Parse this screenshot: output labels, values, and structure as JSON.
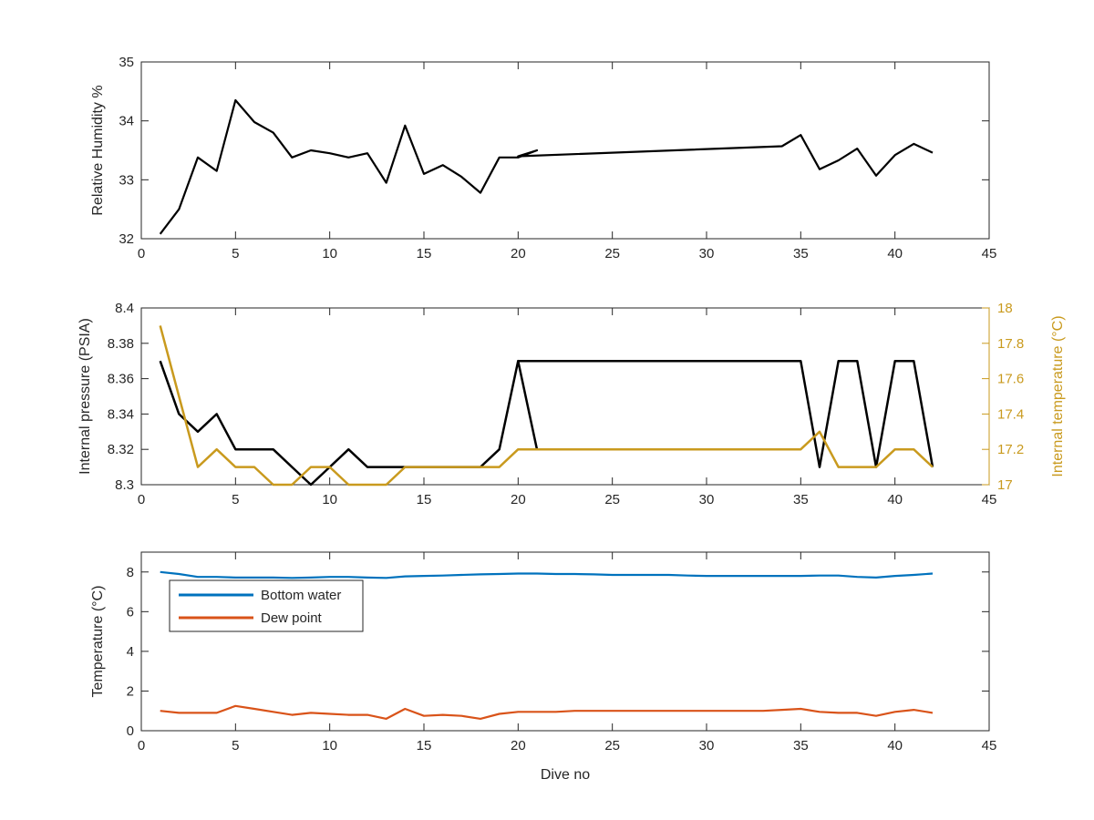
{
  "chart_data": [
    {
      "type": "line",
      "xlabel": "",
      "ylabel": "Relative Humidity %",
      "xlim": [
        0,
        45
      ],
      "ylim": [
        32,
        35
      ],
      "xticks": [
        0,
        5,
        10,
        15,
        20,
        25,
        30,
        35,
        40,
        45
      ],
      "yticks": [
        32,
        33,
        34,
        35
      ],
      "grid": false,
      "series": [
        {
          "color": "#000000",
          "x": [
            1,
            2,
            3,
            4,
            5,
            6,
            7,
            8,
            9,
            10,
            11,
            12,
            13,
            14,
            15,
            16,
            17,
            18,
            19,
            20,
            21,
            20,
            34,
            35,
            36,
            37,
            38,
            39,
            40,
            41,
            42
          ],
          "y": [
            32.08,
            32.5,
            33.38,
            33.15,
            34.35,
            33.98,
            33.8,
            33.38,
            33.5,
            33.45,
            33.38,
            33.45,
            32.95,
            33.92,
            33.1,
            33.25,
            33.05,
            32.78,
            33.38,
            33.38,
            33.5,
            33.4,
            33.57,
            33.76,
            33.18,
            33.33,
            33.53,
            33.07,
            33.42,
            33.61,
            33.46
          ]
        }
      ]
    },
    {
      "type": "line",
      "xlabel": "",
      "ylabel": "Internal pressure (PSIA)",
      "ylabel_right": "Internal temperature (°C)",
      "xlim": [
        0,
        45
      ],
      "ylim": [
        8.3,
        8.4
      ],
      "ylim_right": [
        17,
        18
      ],
      "xticks": [
        0,
        5,
        10,
        15,
        20,
        25,
        30,
        35,
        40,
        45
      ],
      "yticks": [
        "8.3",
        "8.32",
        "8.34",
        "8.36",
        "8.38",
        "8.4"
      ],
      "yticks_right": [
        "17",
        "17.2",
        "17.4",
        "17.6",
        "17.8",
        "18"
      ],
      "grid": false,
      "series": [
        {
          "axis": "left",
          "color": "#000000",
          "x": [
            1,
            2,
            3,
            4,
            5,
            6,
            7,
            8,
            9,
            10,
            11,
            12,
            13,
            14,
            15,
            16,
            17,
            18,
            19,
            20,
            21,
            20,
            35,
            36,
            37,
            38,
            39,
            40,
            41,
            42
          ],
          "y": [
            8.37,
            8.34,
            8.33,
            8.34,
            8.32,
            8.32,
            8.32,
            8.31,
            8.3,
            8.31,
            8.32,
            8.31,
            8.31,
            8.31,
            8.31,
            8.31,
            8.31,
            8.31,
            8.32,
            8.37,
            8.32,
            8.37,
            8.37,
            8.31,
            8.37,
            8.37,
            8.31,
            8.37,
            8.37,
            8.31
          ]
        },
        {
          "axis": "right",
          "color": "#C99A1E",
          "x": [
            1,
            2,
            3,
            4,
            5,
            6,
            7,
            8,
            9,
            10,
            11,
            12,
            13,
            14,
            15,
            16,
            17,
            18,
            19,
            20,
            21,
            20,
            35,
            36,
            37,
            38,
            39,
            40,
            41,
            42
          ],
          "y": [
            17.9,
            17.5,
            17.1,
            17.2,
            17.1,
            17.1,
            17.0,
            17.0,
            17.1,
            17.1,
            17.0,
            17.0,
            17.0,
            17.1,
            17.1,
            17.1,
            17.1,
            17.1,
            17.1,
            17.2,
            17.2,
            17.2,
            17.2,
            17.3,
            17.1,
            17.1,
            17.1,
            17.2,
            17.2,
            17.1
          ]
        }
      ]
    },
    {
      "type": "line",
      "xlabel": "Dive no",
      "ylabel": "Temperature (°C)",
      "xlim": [
        0,
        45
      ],
      "ylim": [
        0,
        9
      ],
      "xticks": [
        0,
        5,
        10,
        15,
        20,
        25,
        30,
        35,
        40,
        45
      ],
      "yticks": [
        0,
        2,
        4,
        6,
        8
      ],
      "grid": false,
      "legend": "top-left",
      "series": [
        {
          "name": "Bottom water",
          "color": "#0072BD",
          "x": [
            1,
            2,
            3,
            4,
            5,
            6,
            7,
            8,
            9,
            10,
            11,
            12,
            13,
            14,
            15,
            16,
            17,
            18,
            19,
            20,
            21,
            22,
            23,
            24,
            25,
            26,
            27,
            28,
            29,
            30,
            31,
            32,
            33,
            34,
            35,
            36,
            37,
            38,
            39,
            40,
            41,
            42
          ],
          "y": [
            8.0,
            7.9,
            7.75,
            7.75,
            7.72,
            7.72,
            7.72,
            7.7,
            7.72,
            7.75,
            7.75,
            7.72,
            7.7,
            7.78,
            7.8,
            7.82,
            7.85,
            7.88,
            7.9,
            7.92,
            7.92,
            7.9,
            7.9,
            7.88,
            7.85,
            7.85,
            7.85,
            7.85,
            7.82,
            7.8,
            7.8,
            7.8,
            7.8,
            7.8,
            7.8,
            7.82,
            7.82,
            7.75,
            7.72,
            7.8,
            7.85,
            7.92
          ]
        },
        {
          "name": "Dew point",
          "color": "#D95319",
          "x": [
            1,
            2,
            3,
            4,
            5,
            6,
            7,
            8,
            9,
            10,
            11,
            12,
            13,
            14,
            15,
            16,
            17,
            18,
            19,
            20,
            21,
            22,
            23,
            24,
            25,
            26,
            27,
            28,
            29,
            30,
            31,
            32,
            33,
            34,
            35,
            36,
            37,
            38,
            39,
            40,
            41,
            42
          ],
          "y": [
            1.0,
            0.9,
            0.9,
            0.9,
            1.25,
            1.1,
            0.95,
            0.8,
            0.9,
            0.85,
            0.8,
            0.8,
            0.6,
            1.1,
            0.75,
            0.8,
            0.75,
            0.6,
            0.85,
            0.95,
            0.95,
            0.95,
            1.0,
            1.0,
            1.0,
            1.0,
            1.0,
            1.0,
            1.0,
            1.0,
            1.0,
            1.0,
            1.0,
            1.05,
            1.1,
            0.95,
            0.9,
            0.9,
            0.75,
            0.95,
            1.05,
            0.9
          ]
        }
      ]
    }
  ]
}
